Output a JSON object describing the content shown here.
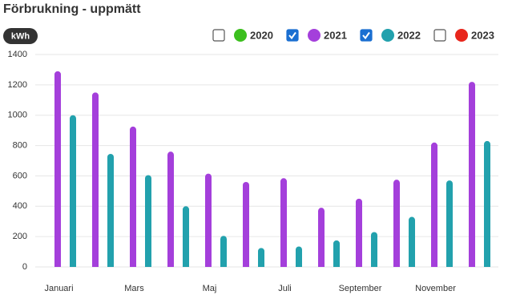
{
  "chart_data": {
    "type": "bar",
    "title": "Förbrukning - uppmätt",
    "unit": "kWh",
    "categories": [
      "Januari",
      null,
      "Mars",
      null,
      "Maj",
      null,
      "Juli",
      null,
      "September",
      null,
      "November",
      null
    ],
    "series": [
      {
        "name": "2020",
        "color": "#3cbf1e",
        "checked": false,
        "values": [
          null,
          null,
          null,
          null,
          null,
          null,
          null,
          null,
          null,
          null,
          null,
          null
        ]
      },
      {
        "name": "2021",
        "color": "#a43fdb",
        "checked": true,
        "values": [
          1290,
          1150,
          925,
          760,
          615,
          560,
          585,
          390,
          450,
          575,
          820,
          1220
        ]
      },
      {
        "name": "2022",
        "color": "#22a1ad",
        "checked": true,
        "values": [
          1000,
          745,
          605,
          400,
          205,
          125,
          135,
          175,
          230,
          330,
          570,
          830
        ]
      },
      {
        "name": "2023",
        "color": "#e8261c",
        "checked": false,
        "values": [
          null,
          null,
          null,
          null,
          null,
          null,
          null,
          null,
          null,
          null,
          null,
          null
        ]
      }
    ],
    "ylim": [
      0,
      1400
    ],
    "yticks": [
      0,
      200,
      400,
      600,
      800,
      1000,
      1200,
      1400
    ],
    "grid": true
  }
}
